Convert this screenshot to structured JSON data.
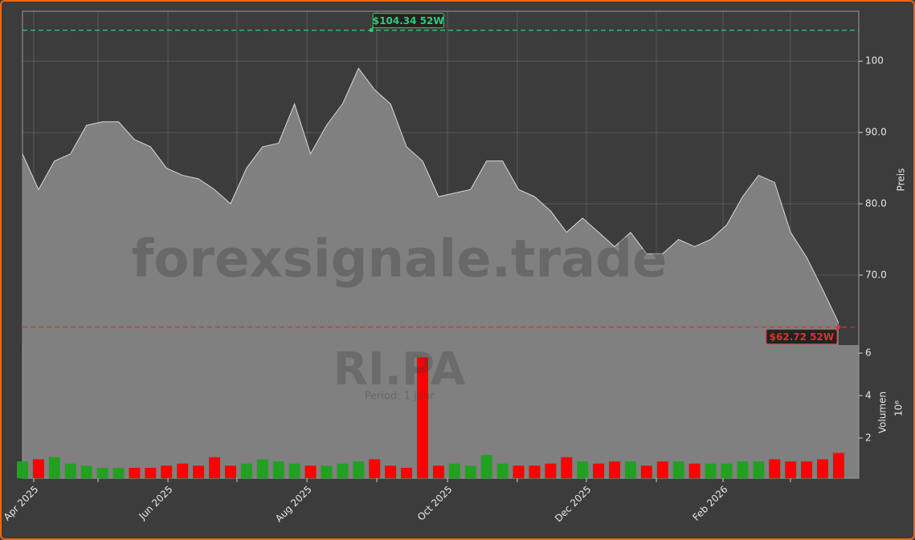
{
  "chart_data": {
    "type": "stock",
    "watermark": "forexsignale.trade",
    "symbol": "RI.PA",
    "period_label": "Period: 1 Jahr",
    "categories": [
      null,
      null,
      null,
      null,
      null,
      null,
      null,
      null,
      null,
      null,
      null,
      null,
      null,
      null,
      null,
      null,
      null,
      null,
      null,
      null,
      null,
      null,
      null,
      null,
      null,
      null,
      null,
      null,
      null,
      null,
      null,
      null,
      null,
      null,
      null,
      null,
      null,
      null,
      null,
      null,
      null,
      null,
      null,
      null,
      null,
      null,
      null,
      null,
      null,
      null,
      null,
      null
    ],
    "xlim": [
      0,
      52.26
    ],
    "xticks": [
      {
        "value": 0.7,
        "label": "Apr 2025"
      },
      {
        "value": 4.72,
        "label": null
      },
      {
        "value": 9.09,
        "label": "Jun 2025"
      },
      {
        "value": 13.4,
        "label": null
      },
      {
        "value": 17.78,
        "label": "Aug 2025"
      },
      {
        "value": 22.14,
        "label": null
      },
      {
        "value": 26.56,
        "label": "Oct 2025"
      },
      {
        "value": 30.92,
        "label": null
      },
      {
        "value": 35.24,
        "label": "Dec 2025"
      },
      {
        "value": 39.61,
        "label": null
      },
      {
        "value": 43.78,
        "label": "Feb 2026"
      },
      {
        "value": 47.99,
        "label": null
      }
    ],
    "price": {
      "axis_label": "Preis",
      "color": "#808080",
      "values": [
        87,
        82,
        86,
        87,
        91,
        91.5,
        91.5,
        89,
        88,
        85,
        84,
        83.5,
        82,
        80,
        85,
        88,
        88.5,
        94,
        87,
        91,
        94,
        99,
        96,
        94,
        88,
        86,
        81,
        81.5,
        82,
        86,
        86,
        82,
        81,
        79,
        76,
        78,
        76,
        74,
        76,
        73,
        73,
        75,
        74,
        75,
        77,
        81,
        84,
        83,
        76,
        72.5,
        68,
        63.3
      ],
      "ylim": [
        60.2,
        107.0
      ],
      "yticks": [
        {
          "value": 70,
          "label": "70.0"
        },
        {
          "value": 80,
          "label": "80.0"
        },
        {
          "value": 90,
          "label": "90.0"
        },
        {
          "value": 100,
          "label": "100"
        }
      ],
      "grid": true
    },
    "high_52w": {
      "value": 104.34,
      "label": "$104.34 52W",
      "index": 21.8,
      "color": "#2ecc71"
    },
    "low_52w": {
      "value": 62.72,
      "label": "$62.72 52W",
      "index": 51,
      "color": "#e03030"
    },
    "volume": {
      "axis_label": "Volumen",
      "offset_label": "10⁶",
      "values": [
        0.9,
        1.0,
        1.1,
        0.8,
        0.7,
        0.6,
        0.6,
        0.6,
        0.6,
        0.7,
        0.8,
        0.7,
        1.1,
        0.7,
        0.8,
        1.0,
        0.9,
        0.8,
        0.7,
        0.7,
        0.8,
        0.9,
        1.0,
        0.7,
        0.6,
        5.8,
        0.7,
        0.8,
        0.7,
        1.2,
        0.8,
        0.7,
        0.7,
        0.8,
        1.1,
        0.9,
        0.8,
        0.9,
        0.9,
        0.7,
        0.9,
        0.9,
        0.8,
        0.8,
        0.8,
        0.9,
        0.9,
        1.0,
        0.9,
        0.9,
        1.0,
        1.3
      ],
      "colors": [
        "#22a022",
        "#ff0000",
        "#22a022",
        "#22a022",
        "#22a022",
        "#22a022",
        "#22a022",
        "#ff0000",
        "#ff0000",
        "#ff0000",
        "#ff0000",
        "#ff0000",
        "#ff0000",
        "#ff0000",
        "#22a022",
        "#22a022",
        "#22a022",
        "#22a022",
        "#ff0000",
        "#22a022",
        "#22a022",
        "#22a022",
        "#ff0000",
        "#ff0000",
        "#ff0000",
        "#ff0000",
        "#ff0000",
        "#22a022",
        "#22a022",
        "#22a022",
        "#22a022",
        "#ff0000",
        "#ff0000",
        "#ff0000",
        "#ff0000",
        "#22a022",
        "#ff0000",
        "#ff0000",
        "#22a022",
        "#ff0000",
        "#ff0000",
        "#22a022",
        "#ff0000",
        "#22a022",
        "#22a022",
        "#22a022",
        "#22a022",
        "#ff0000",
        "#ff0000",
        "#ff0000",
        "#ff0000",
        "#ff0000"
      ],
      "ylim": [
        0.11,
        6.38
      ],
      "yticks": [
        2,
        4,
        6
      ]
    }
  }
}
